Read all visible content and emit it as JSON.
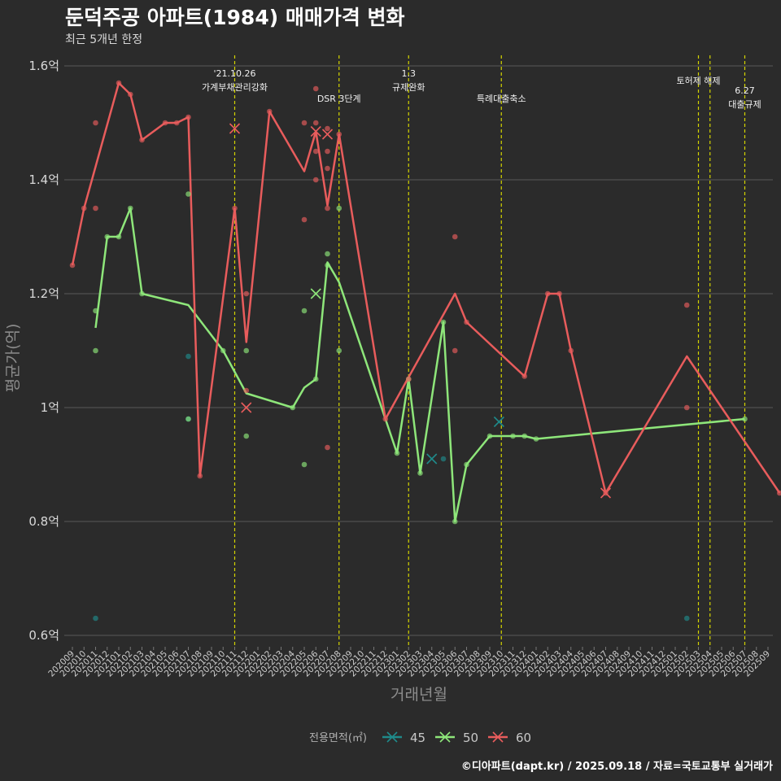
{
  "title": "둔덕주공 아파트(1984) 매매가격 변화",
  "subtitle": "최근 5개년 한정",
  "caption": "©디아파트(dapt.kr) / 2025.09.18 / 자료=국토교통부 실거래가",
  "colors": {
    "background": "#2b2b2b",
    "s45": "#1f8a8a",
    "s50": "#8ee67a",
    "s60": "#e85c5c",
    "vline": "#d4d400",
    "grid": "#5a5a5a"
  },
  "chart_data": {
    "type": "line",
    "title": "둔덕주공 아파트(1984) 매매가격 변화",
    "xlabel": "거래년월",
    "ylabel": "평균가(억)",
    "ylim": [
      0.58,
      1.63
    ],
    "yticks": [
      0.6,
      0.8,
      1.0,
      1.2,
      1.4,
      1.6
    ],
    "ytick_labels": [
      "0.6억",
      "0.8억",
      "1억",
      "1.2억",
      "1.4억",
      "1.6억"
    ],
    "categories": [
      "202009",
      "202010",
      "202011",
      "202012",
      "202101",
      "202102",
      "202103",
      "202104",
      "202105",
      "202106",
      "202107",
      "202108",
      "202109",
      "202110",
      "202111",
      "202112",
      "202201",
      "202202",
      "202203",
      "202204",
      "202205",
      "202206",
      "202207",
      "202208",
      "202209",
      "202210",
      "202211",
      "202212",
      "202301",
      "202302",
      "202303",
      "202304",
      "202305",
      "202306",
      "202307",
      "202308",
      "202309",
      "202310",
      "202311",
      "202312",
      "202401",
      "202402",
      "202403",
      "202404",
      "202405",
      "202406",
      "202407",
      "202408",
      "202409",
      "202410",
      "202411",
      "202412",
      "202501",
      "202502",
      "202503",
      "202504",
      "202505",
      "202506",
      "202507",
      "202508",
      "202509"
    ],
    "legend": {
      "title": "전용면적(㎡)",
      "entries": [
        "45",
        "50",
        "60"
      ]
    },
    "series": [
      {
        "name": "45",
        "line": [],
        "points": [
          [
            2,
            0.63
          ],
          [
            10,
            1.09
          ],
          [
            10,
            0.98
          ],
          [
            32,
            0.91
          ],
          [
            53,
            0.63
          ]
        ],
        "crosses": [
          [
            31,
            0.91
          ],
          [
            36.8,
            0.975
          ]
        ]
      },
      {
        "name": "50",
        "line": [
          [
            2,
            1.14
          ],
          [
            3,
            1.3
          ],
          [
            4,
            1.3
          ],
          [
            5,
            1.35
          ],
          [
            6,
            1.2
          ],
          [
            10,
            1.18
          ],
          [
            13,
            1.1
          ],
          [
            15,
            1.025
          ],
          [
            19,
            1.0
          ],
          [
            20,
            1.035
          ],
          [
            21,
            1.05
          ],
          [
            22,
            1.255
          ],
          [
            23,
            1.22
          ],
          [
            28,
            0.92
          ],
          [
            29,
            1.05
          ],
          [
            30,
            0.885
          ],
          [
            32,
            1.15
          ],
          [
            33,
            0.8
          ],
          [
            34,
            0.9
          ],
          [
            36,
            0.95
          ],
          [
            38,
            0.95
          ],
          [
            39,
            0.95
          ],
          [
            40,
            0.945
          ],
          [
            58,
            0.98
          ]
        ],
        "points": [
          [
            2,
            1.17
          ],
          [
            2,
            1.1
          ],
          [
            3,
            1.3
          ],
          [
            4,
            1.3
          ],
          [
            5,
            1.35
          ],
          [
            6,
            1.2
          ],
          [
            10,
            1.375
          ],
          [
            10,
            0.98
          ],
          [
            13,
            1.1
          ],
          [
            15,
            1.1
          ],
          [
            15,
            0.95
          ],
          [
            19,
            1.0
          ],
          [
            20,
            1.17
          ],
          [
            20,
            0.9
          ],
          [
            21,
            1.05
          ],
          [
            22,
            1.25
          ],
          [
            22,
            1.27
          ],
          [
            23,
            1.35
          ],
          [
            23,
            1.1
          ],
          [
            28,
            0.92
          ],
          [
            29,
            1.05
          ],
          [
            30,
            0.885
          ],
          [
            32,
            1.15
          ],
          [
            33,
            0.8
          ],
          [
            34,
            0.9
          ],
          [
            36,
            0.95
          ],
          [
            38,
            0.95
          ],
          [
            39,
            0.95
          ],
          [
            40,
            0.945
          ],
          [
            58,
            0.98
          ]
        ],
        "crosses": [
          [
            21,
            1.2
          ]
        ]
      },
      {
        "name": "60",
        "line": [
          [
            0,
            1.25
          ],
          [
            1,
            1.35
          ],
          [
            4,
            1.57
          ],
          [
            5,
            1.55
          ],
          [
            6,
            1.47
          ],
          [
            8,
            1.5
          ],
          [
            9,
            1.5
          ],
          [
            10,
            1.51
          ],
          [
            11,
            0.88
          ],
          [
            14,
            1.35
          ],
          [
            15,
            1.115
          ],
          [
            17,
            1.52
          ],
          [
            20,
            1.415
          ],
          [
            21,
            1.485
          ],
          [
            22,
            1.355
          ],
          [
            23,
            1.48
          ],
          [
            27,
            0.98
          ],
          [
            33,
            1.2
          ],
          [
            34,
            1.15
          ],
          [
            39,
            1.055
          ],
          [
            41,
            1.2
          ],
          [
            42,
            1.2
          ],
          [
            43,
            1.1
          ],
          [
            46,
            0.85
          ],
          [
            53,
            1.09
          ],
          [
            61,
            0.85
          ]
        ],
        "points": [
          [
            0,
            1.25
          ],
          [
            1,
            1.35
          ],
          [
            2,
            1.5
          ],
          [
            2,
            1.35
          ],
          [
            4,
            1.57
          ],
          [
            5,
            1.55
          ],
          [
            6,
            1.47
          ],
          [
            8,
            1.5
          ],
          [
            9,
            1.5
          ],
          [
            10,
            1.51
          ],
          [
            11,
            0.88
          ],
          [
            14,
            1.35
          ],
          [
            15,
            1.2
          ],
          [
            15,
            1.03
          ],
          [
            17,
            1.52
          ],
          [
            20,
            1.5
          ],
          [
            20,
            1.33
          ],
          [
            21,
            1.56
          ],
          [
            21,
            1.5
          ],
          [
            21,
            1.45
          ],
          [
            21,
            1.4
          ],
          [
            22,
            1.49
          ],
          [
            22,
            1.45
          ],
          [
            22,
            1.42
          ],
          [
            22,
            1.35
          ],
          [
            22,
            0.93
          ],
          [
            23,
            1.48
          ],
          [
            27,
            0.98
          ],
          [
            29,
            1.05
          ],
          [
            33,
            1.3
          ],
          [
            33,
            1.1
          ],
          [
            34,
            1.15
          ],
          [
            39,
            1.055
          ],
          [
            41,
            1.2
          ],
          [
            42,
            1.2
          ],
          [
            43,
            1.1
          ],
          [
            46,
            0.85
          ],
          [
            53,
            1.18
          ],
          [
            53,
            1.0
          ],
          [
            61,
            0.85
          ]
        ],
        "crosses": [
          [
            14,
            1.49
          ],
          [
            15,
            1.0
          ],
          [
            21,
            1.485
          ],
          [
            22,
            1.48
          ],
          [
            46,
            0.85
          ]
        ]
      }
    ],
    "vlines": [
      {
        "x": 14,
        "label": [
          "'21.10.26",
          "가계부채관리강화"
        ],
        "level": "high"
      },
      {
        "x": 23,
        "label": [
          "DSR 3단계"
        ],
        "level": "mid"
      },
      {
        "x": 29,
        "label": [
          "1.3",
          "규제완화"
        ],
        "level": "high"
      },
      {
        "x": 37,
        "label": [
          "특례대출축소"
        ],
        "level": "mid"
      },
      {
        "x": 54,
        "label": [
          "토허제 해제"
        ],
        "level": "top"
      },
      {
        "x": 55,
        "label": [],
        "level": "top"
      },
      {
        "x": 58,
        "label": [
          "6.27",
          "대출규제"
        ],
        "level": "low"
      }
    ]
  }
}
